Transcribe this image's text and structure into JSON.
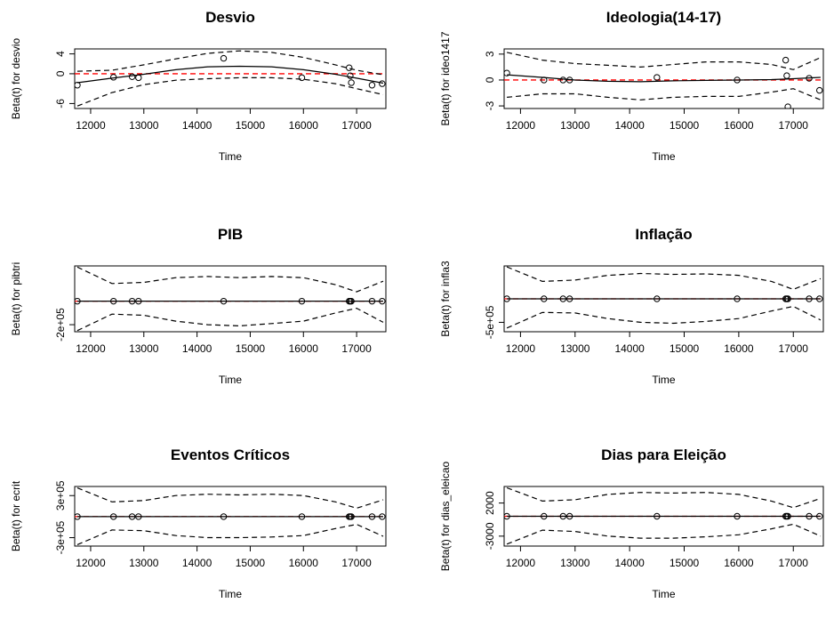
{
  "chart_data": [
    {
      "type": "line",
      "title": "Desvio",
      "xlabel": "Time",
      "ylabel": "Beta(t) for desvio",
      "xlim": [
        11700,
        17550
      ],
      "ylim": [
        -7,
        5
      ],
      "xticks": [
        12000,
        13000,
        14000,
        15000,
        16000,
        17000
      ],
      "yticks": [
        -6,
        0,
        4
      ],
      "ytick_labels": [
        "-6",
        "0",
        "4"
      ],
      "grid": false,
      "reference_line": {
        "y": 0,
        "color": "#ff0000",
        "style": "dashed"
      },
      "series": [
        {
          "role": "fit",
          "style": "solid",
          "x": [
            11750,
            12400,
            13000,
            13600,
            14200,
            14800,
            15400,
            16000,
            16600,
            17000,
            17500
          ],
          "y": [
            -1.8,
            -0.9,
            -0.1,
            0.8,
            1.4,
            1.5,
            1.4,
            0.8,
            -0.1,
            -0.9,
            -1.9
          ]
        },
        {
          "role": "upper",
          "style": "dashed",
          "x": [
            11750,
            12400,
            13000,
            13600,
            14200,
            14800,
            15400,
            16000,
            16600,
            17000,
            17500
          ],
          "y": [
            0.5,
            0.7,
            1.8,
            3.0,
            4.1,
            4.6,
            4.3,
            3.3,
            1.8,
            0.7,
            -0.2
          ]
        },
        {
          "role": "lower",
          "style": "dashed",
          "x": [
            11750,
            12400,
            13000,
            13600,
            14200,
            14800,
            15400,
            16000,
            16600,
            17000,
            17500
          ],
          "y": [
            -6.5,
            -3.8,
            -2.2,
            -1.3,
            -1.0,
            -0.8,
            -0.8,
            -1.1,
            -2.0,
            -3.0,
            -4.2
          ]
        },
        {
          "role": "residuals",
          "style": "points",
          "x": [
            11750,
            12430,
            12780,
            12900,
            14500,
            15970,
            16860,
            16880,
            16900,
            17290,
            17480
          ],
          "y": [
            -2.3,
            -0.7,
            -0.6,
            -0.8,
            3.1,
            -0.8,
            1.2,
            -0.4,
            -1.8,
            -2.3,
            -2.0
          ]
        }
      ]
    },
    {
      "type": "line",
      "title": "Ideologia(14-17)",
      "xlabel": "Time",
      "ylabel": "Beta(t) for ideo1417",
      "xlim": [
        11700,
        17550
      ],
      "ylim": [
        -3.3,
        3.6
      ],
      "xticks": [
        12000,
        13000,
        14000,
        15000,
        16000,
        17000
      ],
      "yticks": [
        -3,
        0,
        3
      ],
      "ytick_labels": [
        "-3",
        "0",
        "3"
      ],
      "grid": false,
      "reference_line": {
        "y": 0,
        "color": "#ff0000",
        "style": "dashed"
      },
      "series": [
        {
          "role": "fit",
          "style": "solid",
          "x": [
            11750,
            12400,
            13000,
            13600,
            14200,
            14800,
            15400,
            16000,
            16600,
            17000,
            17500
          ],
          "y": [
            0.6,
            0.3,
            0.0,
            -0.15,
            -0.2,
            -0.1,
            -0.05,
            0.0,
            0.05,
            0.15,
            0.3
          ]
        },
        {
          "role": "upper",
          "style": "dashed",
          "x": [
            11750,
            12400,
            13000,
            13600,
            14200,
            14800,
            15400,
            16000,
            16600,
            17000,
            17500
          ],
          "y": [
            3.2,
            2.3,
            1.9,
            1.7,
            1.5,
            1.8,
            2.1,
            2.1,
            1.8,
            1.2,
            2.6
          ]
        },
        {
          "role": "lower",
          "style": "dashed",
          "x": [
            11750,
            12400,
            13000,
            13600,
            14200,
            14800,
            15400,
            16000,
            16600,
            17000,
            17500
          ],
          "y": [
            -2.0,
            -1.6,
            -1.6,
            -2.0,
            -2.3,
            -2.0,
            -1.9,
            -1.9,
            -1.4,
            -1.0,
            -2.3
          ]
        },
        {
          "role": "residuals",
          "style": "points",
          "x": [
            11750,
            12430,
            12780,
            12900,
            14500,
            15970,
            16860,
            16880,
            16900,
            17290,
            17480
          ],
          "y": [
            0.8,
            0.0,
            0.0,
            0.0,
            0.3,
            0.0,
            2.3,
            0.5,
            -3.1,
            0.2,
            -1.2
          ]
        }
      ]
    },
    {
      "type": "line",
      "title": "PIB",
      "xlabel": "Time",
      "ylabel": "Beta(t) for pibtri",
      "xlim": [
        11700,
        17550
      ],
      "ylim": [
        -260000,
        300000
      ],
      "xticks": [
        12000,
        13000,
        14000,
        15000,
        16000,
        17000
      ],
      "yticks": [
        -200000
      ],
      "ytick_labels": [
        "-2e+05"
      ],
      "grid": false,
      "reference_line": {
        "y": 0,
        "color": "#ff0000",
        "style": "dashed"
      },
      "series": [
        {
          "role": "fit",
          "style": "solid",
          "x": [
            11750,
            17500
          ],
          "y": [
            0,
            0
          ]
        },
        {
          "role": "upper",
          "style": "dashed",
          "x": [
            11750,
            12400,
            13000,
            13600,
            14200,
            14800,
            15400,
            16000,
            16600,
            17000,
            17500
          ],
          "y": [
            290000,
            150000,
            160000,
            200000,
            210000,
            200000,
            210000,
            200000,
            140000,
            80000,
            170000
          ]
        },
        {
          "role": "lower",
          "style": "dashed",
          "x": [
            11750,
            12400,
            13000,
            13600,
            14200,
            14800,
            15400,
            16000,
            16600,
            17000,
            17500
          ],
          "y": [
            -250000,
            -110000,
            -120000,
            -170000,
            -200000,
            -210000,
            -190000,
            -170000,
            -100000,
            -60000,
            -180000
          ]
        },
        {
          "role": "residuals",
          "style": "points",
          "x": [
            11750,
            12430,
            12780,
            12900,
            14500,
            15970,
            16860,
            16880,
            16900,
            17290,
            17480
          ],
          "y": [
            0,
            0,
            0,
            0,
            0,
            0,
            0,
            0,
            0,
            0,
            0
          ]
        }
      ]
    },
    {
      "type": "line",
      "title": "Inflação",
      "xlabel": "Time",
      "ylabel": "Beta(t) for infla3",
      "xlim": [
        11700,
        17550
      ],
      "ylim": [
        -700000,
        700000
      ],
      "xticks": [
        12000,
        13000,
        14000,
        15000,
        16000,
        17000
      ],
      "yticks": [
        -500000
      ],
      "ytick_labels": [
        "-5e+05"
      ],
      "grid": false,
      "reference_line": {
        "y": 0,
        "color": "#ff0000",
        "style": "dashed"
      },
      "series": [
        {
          "role": "fit",
          "style": "solid",
          "x": [
            11750,
            17500
          ],
          "y": [
            0,
            0
          ]
        },
        {
          "role": "upper",
          "style": "dashed",
          "x": [
            11750,
            12400,
            13000,
            13600,
            14200,
            14800,
            15400,
            16000,
            16600,
            17000,
            17500
          ],
          "y": [
            680000,
            370000,
            400000,
            500000,
            540000,
            520000,
            530000,
            500000,
            370000,
            200000,
            430000
          ]
        },
        {
          "role": "lower",
          "style": "dashed",
          "x": [
            11750,
            12400,
            13000,
            13600,
            14200,
            14800,
            15400,
            16000,
            16600,
            17000,
            17500
          ],
          "y": [
            -620000,
            -290000,
            -300000,
            -420000,
            -500000,
            -520000,
            -480000,
            -420000,
            -260000,
            -160000,
            -450000
          ]
        },
        {
          "role": "residuals",
          "style": "points",
          "x": [
            11750,
            12430,
            12780,
            12900,
            14500,
            15970,
            16860,
            16880,
            16900,
            17290,
            17480
          ],
          "y": [
            0,
            0,
            0,
            0,
            0,
            0,
            0,
            0,
            0,
            0,
            0
          ]
        }
      ]
    },
    {
      "type": "line",
      "title": "Eventos Críticos",
      "xlabel": "Time",
      "ylabel": "Beta(t) for ecrit",
      "xlim": [
        11700,
        17550
      ],
      "ylim": [
        -420000,
        430000
      ],
      "xticks": [
        12000,
        13000,
        14000,
        15000,
        16000,
        17000
      ],
      "yticks": [
        -300000,
        300000
      ],
      "ytick_labels": [
        "-3e+05",
        "3e+05"
      ],
      "grid": false,
      "reference_line": {
        "y": 0,
        "color": "#ff0000",
        "style": "dashed"
      },
      "series": [
        {
          "role": "fit",
          "style": "solid",
          "x": [
            11750,
            17500
          ],
          "y": [
            0,
            0
          ]
        },
        {
          "role": "upper",
          "style": "dashed",
          "x": [
            11750,
            12400,
            13000,
            13600,
            14200,
            14800,
            15400,
            16000,
            16600,
            17000,
            17500
          ],
          "y": [
            410000,
            210000,
            230000,
            300000,
            320000,
            310000,
            320000,
            300000,
            210000,
            120000,
            240000
          ]
        },
        {
          "role": "lower",
          "style": "dashed",
          "x": [
            11750,
            12400,
            13000,
            13600,
            14200,
            14800,
            15400,
            16000,
            16600,
            17000,
            17500
          ],
          "y": [
            -400000,
            -190000,
            -200000,
            -270000,
            -300000,
            -300000,
            -290000,
            -270000,
            -170000,
            -110000,
            -280000
          ]
        },
        {
          "role": "residuals",
          "style": "points",
          "x": [
            11750,
            12430,
            12780,
            12900,
            14500,
            15970,
            16860,
            16880,
            16900,
            17290,
            17480
          ],
          "y": [
            0,
            0,
            0,
            0,
            0,
            0,
            0,
            0,
            0,
            0,
            0
          ]
        }
      ]
    },
    {
      "type": "line",
      "title": "Dias para Eleição",
      "xlabel": "Time",
      "ylabel": "Beta(t) for dias_eleicao",
      "xlim": [
        11700,
        17550
      ],
      "ylim": [
        -4500,
        4500
      ],
      "xticks": [
        12000,
        13000,
        14000,
        15000,
        16000,
        17000
      ],
      "yticks": [
        -3000,
        2000
      ],
      "ytick_labels": [
        "-3000",
        "2000"
      ],
      "grid": false,
      "reference_line": {
        "y": 0,
        "color": "#ff0000",
        "style": "dashed"
      },
      "series": [
        {
          "role": "fit",
          "style": "solid",
          "x": [
            11750,
            17500
          ],
          "y": [
            0,
            0
          ]
        },
        {
          "role": "upper",
          "style": "dashed",
          "x": [
            11750,
            12400,
            13000,
            13600,
            14200,
            14800,
            15400,
            16000,
            16600,
            17000,
            17500
          ],
          "y": [
            4300,
            2300,
            2500,
            3300,
            3600,
            3500,
            3600,
            3300,
            2300,
            1300,
            2700
          ]
        },
        {
          "role": "lower",
          "style": "dashed",
          "x": [
            11750,
            12400,
            13000,
            13600,
            14200,
            14800,
            15400,
            16000,
            16600,
            17000,
            17500
          ],
          "y": [
            -4200,
            -2100,
            -2300,
            -3000,
            -3300,
            -3300,
            -3100,
            -2800,
            -1900,
            -1200,
            -3000
          ]
        },
        {
          "role": "residuals",
          "style": "points",
          "x": [
            11750,
            12430,
            12780,
            12900,
            14500,
            15970,
            16860,
            16880,
            16900,
            17290,
            17480
          ],
          "y": [
            0,
            0,
            0,
            0,
            0,
            0,
            0,
            0,
            0,
            0,
            0
          ]
        }
      ]
    }
  ]
}
